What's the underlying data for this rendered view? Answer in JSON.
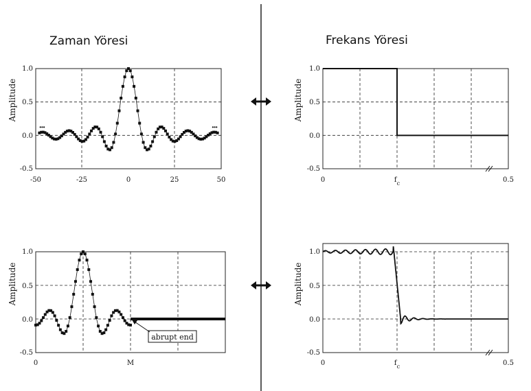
{
  "titles": {
    "time": "Zaman Yöresi",
    "freq": "Frekans Yöresi"
  },
  "ylabel": "Amplitude",
  "y_ticks": [
    "1.0",
    "0.5",
    "0.0",
    "-0.5"
  ],
  "panels": {
    "tl": {
      "x_ticks": [
        "-50",
        "-25",
        "0",
        "25",
        "50"
      ]
    },
    "tr": {
      "x_ticks": [
        "0",
        "fc",
        "0.5"
      ]
    },
    "bl": {
      "x_ticks": [
        "0",
        "M"
      ],
      "annotation": "abrupt end"
    },
    "br": {
      "x_ticks": [
        "0",
        "fc",
        "0.5"
      ]
    }
  },
  "chart_data": [
    {
      "type": "scatter",
      "title": "",
      "xlabel": "",
      "ylabel": "Amplitude",
      "xlim": [
        -50,
        50
      ],
      "ylim": [
        -0.5,
        1.0
      ],
      "series": [
        {
          "function": "sinc",
          "cutoff_fraction": 0.07,
          "sample_range": [
            -50,
            50
          ]
        }
      ],
      "grid": true
    },
    {
      "type": "line",
      "title": "",
      "xlabel": "",
      "ylabel": "Amplitude",
      "xlim": [
        0,
        0.5
      ],
      "ylim": [
        -0.5,
        1.0
      ],
      "series": [
        {
          "x": [
            0,
            0.2,
            0.2,
            0.5
          ],
          "y": [
            1.0,
            1.0,
            0.0,
            0.0
          ]
        }
      ],
      "grid": true
    },
    {
      "type": "scatter",
      "title": "",
      "xlabel": "",
      "ylabel": "Amplitude",
      "xlim": [
        0,
        100
      ],
      "ylim": [
        -0.5,
        1.0
      ],
      "series": [
        {
          "function": "truncated shifted sinc",
          "center": 25,
          "truncation_M": 50
        }
      ],
      "grid": true
    },
    {
      "type": "line",
      "title": "",
      "xlabel": "",
      "ylabel": "Amplitude",
      "xlim": [
        0,
        0.5
      ],
      "ylim": [
        -0.5,
        1.0
      ],
      "series": [
        {
          "description": "low-pass response with ripple",
          "cutoff": 0.2
        }
      ],
      "grid": true
    }
  ]
}
